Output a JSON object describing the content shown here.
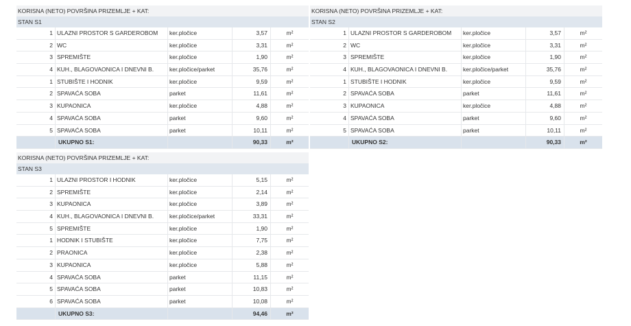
{
  "unit": "m²",
  "tables": [
    {
      "heading": "KORISNA (NETO) POVRŠINA PRIZEMLJE + KAT:",
      "stan": "STAN S1",
      "rows": [
        {
          "n": "1",
          "name": "ULAZNI PROSTOR S GARDEROBOM",
          "material": "ker.pločice",
          "area": "3,57"
        },
        {
          "n": "2",
          "name": "WC",
          "material": "ker.pločice",
          "area": "3,31"
        },
        {
          "n": "3",
          "name": "SPREMIŠTE",
          "material": "ker.pločice",
          "area": "1,90"
        },
        {
          "n": "4",
          "name": "KUH., BLAGOVAONICA I DNEVNI B.",
          "material": "ker.pločice/parket",
          "area": "35,76"
        },
        {
          "n": "1",
          "name": "STUBIŠTE I HODNIK",
          "material": "ker.pločice",
          "area": "9,59"
        },
        {
          "n": "2",
          "name": "SPAVAĆA SOBA",
          "material": "parket",
          "area": "11,61"
        },
        {
          "n": "3",
          "name": "KUPAONICA",
          "material": "ker.pločice",
          "area": "4,88"
        },
        {
          "n": "4",
          "name": "SPAVAĆA SOBA",
          "material": "parket",
          "area": "9,60"
        },
        {
          "n": "5",
          "name": "SPAVAĆA SOBA",
          "material": "parket",
          "area": "10,11"
        }
      ],
      "total_label": "UKUPNO S1:",
      "total": "90,33"
    },
    {
      "heading": "KORISNA (NETO) POVRŠINA PRIZEMLJE + KAT:",
      "stan": "STAN S2",
      "rows": [
        {
          "n": "1",
          "name": "ULAZNI PROSTOR S GARDEROBOM",
          "material": "ker.pločice",
          "area": "3,57"
        },
        {
          "n": "2",
          "name": "WC",
          "material": "ker.pločice",
          "area": "3,31"
        },
        {
          "n": "3",
          "name": "SPREMIŠTE",
          "material": "ker.pločice",
          "area": "1,90"
        },
        {
          "n": "4",
          "name": "KUH., BLAGOVAONICA I DNEVNI B.",
          "material": "ker.pločice/parket",
          "area": "35,76"
        },
        {
          "n": "1",
          "name": "STUBIŠTE I HODNIK",
          "material": "ker.pločice",
          "area": "9,59"
        },
        {
          "n": "2",
          "name": "SPAVAĆA SOBA",
          "material": "parket",
          "area": "11,61"
        },
        {
          "n": "3",
          "name": "KUPAONICA",
          "material": "ker.pločice",
          "area": "4,88"
        },
        {
          "n": "4",
          "name": "SPAVAĆA SOBA",
          "material": "parket",
          "area": "9,60"
        },
        {
          "n": "5",
          "name": "SPAVAĆA SOBA",
          "material": "parket",
          "area": "10,11"
        }
      ],
      "total_label": "UKUPNO S2:",
      "total": "90,33"
    },
    {
      "heading": "KORISNA (NETO) POVRŠINA PRIZEMLJE + KAT:",
      "stan": "STAN S3",
      "rows": [
        {
          "n": "1",
          "name": "ULAZNI PROSTOR I HODNIK",
          "material": "ker.pločice",
          "area": "5,15"
        },
        {
          "n": "2",
          "name": "SPREMIŠTE",
          "material": "ker.pločice",
          "area": "2,14"
        },
        {
          "n": "3",
          "name": "KUPAONICA",
          "material": "ker.pločice",
          "area": "3,89"
        },
        {
          "n": "4",
          "name": "KUH., BLAGOVAONICA I DNEVNI B.",
          "material": "ker.pločice/parket",
          "area": "33,31"
        },
        {
          "n": "5",
          "name": "SPREMIŠTE",
          "material": "ker.pločice",
          "area": "1,90"
        },
        {
          "n": "1",
          "name": "HODNIK I STUBIŠTE",
          "material": "ker.pločice",
          "area": "7,75"
        },
        {
          "n": "2",
          "name": "PRAONICA",
          "material": "ker.pločice",
          "area": "2,38"
        },
        {
          "n": "3",
          "name": "KUPAONICA",
          "material": "ker.pločice",
          "area": "5,88"
        },
        {
          "n": "4",
          "name": "SPAVAĆA SOBA",
          "material": "parket",
          "area": "11,15"
        },
        {
          "n": "5",
          "name": "SPAVAĆA SOBA",
          "material": "parket",
          "area": "10,83"
        },
        {
          "n": "6",
          "name": "SPAVAĆA SOBA",
          "material": "parket",
          "area": "10,08"
        }
      ],
      "total_label": "UKUPNO S3:",
      "total": "94,46"
    }
  ]
}
